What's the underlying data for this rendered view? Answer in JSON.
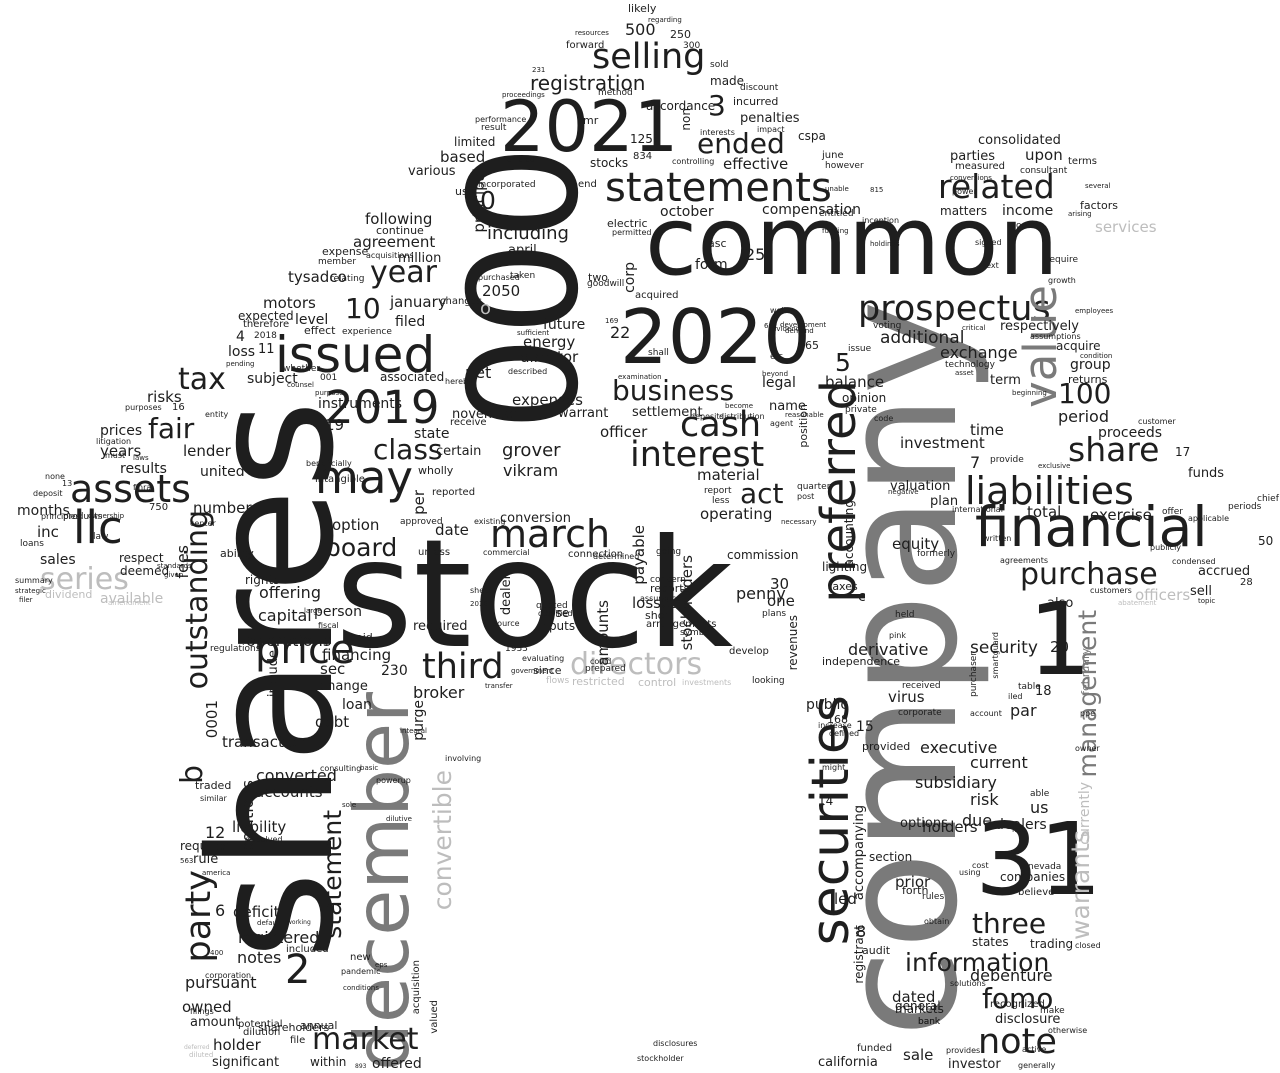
{
  "palette": {
    "dark": "#1e1e1e",
    "mid": "#7a7a7a",
    "light": "#bdbdbd"
  },
  "words": {
    "big": [
      "shares",
      "stock",
      "company",
      "000",
      "common",
      "2020",
      "2021",
      "31",
      "december",
      "financial",
      "securities",
      "preferred",
      "issued",
      "statements",
      "2019",
      "may",
      "prospectus",
      "liabilities",
      "assets",
      "march",
      "llc",
      "interest",
      "cash",
      "value",
      "liability",
      "related",
      "share",
      "purchase",
      "selling",
      "outstanding",
      "price",
      "market",
      "note",
      "third",
      "party",
      "fomo",
      "directors",
      "convertible",
      "management",
      "warrants",
      "series",
      "statement",
      "tax",
      "year",
      "fair",
      "business",
      "class",
      "board",
      "ended",
      "registration",
      "information",
      "three",
      "100",
      "act",
      "10",
      "1",
      "2",
      "3",
      "5",
      "0",
      "b",
      "o"
    ],
    "medium": [
      "including",
      "april",
      "energy",
      "director",
      "grover",
      "vikram",
      "penny",
      "net",
      "expenses",
      "warrant",
      "officer",
      "payable",
      "exchange",
      "additional",
      "respectively",
      "balance",
      "accounting",
      "derivative",
      "security",
      "authorized",
      "par",
      "executive",
      "current",
      "subsidiary",
      "risk",
      "holders",
      "prior",
      "dated",
      "disclosure",
      "debenture",
      "public",
      "virus",
      "investment",
      "period",
      "proceeds",
      "funds",
      "sell",
      "accrued",
      "exercise",
      "total",
      "equity",
      "valuation",
      "plan",
      "time",
      "term",
      "income",
      "consolidated",
      "parties",
      "upon",
      "compensation",
      "october",
      "corp",
      "form",
      "agreement",
      "following",
      "million",
      "tysadco",
      "motors",
      "level",
      "filed",
      "january",
      "loss",
      "subject",
      "associated",
      "risks",
      "years",
      "lender",
      "results",
      "months",
      "inc",
      "sales",
      "number",
      "offering",
      "capital",
      "operations",
      "include",
      "financing",
      "sec",
      "change",
      "loan",
      "debt",
      "transaction",
      "converted",
      "accounts",
      "requires",
      "rule",
      "pursuant",
      "registered",
      "notes",
      "deficit",
      "owned",
      "amount",
      "holder",
      "significant",
      "shareholders",
      "within",
      "offered",
      "purge",
      "required",
      "person",
      "broker",
      "conversion",
      "option",
      "date",
      "per",
      "operating",
      "material",
      "stockholders",
      "amounts",
      "losses",
      "raise",
      "inputs",
      "dealer",
      "settlement",
      "state",
      "november",
      "instruments",
      "certain",
      "principal",
      "various",
      "based",
      "effective",
      "cspa",
      "penalties",
      "incurred",
      "made",
      "accordance",
      "non",
      "limited",
      "future",
      "500",
      "250",
      "300",
      "likely",
      "sold",
      "forward",
      "method",
      "mr",
      "california",
      "sale",
      "investor",
      "revenues",
      "legal",
      "name",
      "commission",
      "one",
      "lighting",
      "taxes",
      "independence",
      "revenue",
      "led",
      "section",
      "options",
      "due",
      "us",
      "dealers",
      "companies",
      "trading",
      "states",
      "general",
      "markets",
      "bank",
      "provided",
      "accompanying",
      "registrant",
      "audit",
      "funded",
      "forth",
      "rules",
      "also",
      "smartguard",
      "group",
      "acquire",
      "returns",
      "terms",
      "factors",
      "consultant",
      "measured",
      "matters",
      "signed",
      "next",
      "require",
      "growth",
      "oem",
      "february",
      "currently",
      "services",
      "officers",
      "available",
      "dividend",
      "prices",
      "united",
      "respect",
      "deemed",
      "ability",
      "rights",
      "positions",
      "fees",
      "0001",
      "4",
      "6",
      "7",
      "8",
      "11",
      "12",
      "14",
      "15",
      "16",
      "17",
      "18",
      "19",
      "20",
      "22",
      "25",
      "28",
      "30",
      "125",
      "168",
      "230",
      "750",
      "2050",
      "50",
      "65",
      "834",
      "opinion",
      "indemnification",
      "sheets",
      "voting",
      "private",
      "june",
      "however",
      "entitled",
      "continue",
      "expense",
      "member",
      "relating",
      "expected",
      "therefore",
      "effect",
      "experience",
      "pending",
      "counsel",
      "purpose",
      "hereby",
      "receive",
      "entity",
      "intangible",
      "reported",
      "approved",
      "unless",
      "existing",
      "commercial",
      "connection",
      "determined",
      "going",
      "concern",
      "issuer",
      "short",
      "arrangements",
      "symbol",
      "develop",
      "plans",
      "gain",
      "looking",
      "restricted",
      "control",
      "investments",
      "flows",
      "since",
      "transfer",
      "government",
      "1933",
      "evaluating",
      "quoted",
      "qualified",
      "source",
      "issuance",
      "sheet",
      "reports",
      "assurance",
      "covid",
      "prepared",
      "reference",
      "stockholder",
      "disclosures",
      "deposits",
      "distribution",
      "agent",
      "position",
      "well",
      "eic",
      "beyond",
      "acquired",
      "goodwill",
      "two",
      "taken",
      "purchased",
      "changes",
      "acquisitions",
      "asc",
      "substantial",
      "consideration",
      "permitted",
      "electric",
      "discretion",
      "first",
      "end",
      "stocks",
      "use",
      "incorporated",
      "entered",
      "controlling",
      "interests",
      "impact",
      "federal",
      "result",
      "performance",
      "lenders",
      "proceedings",
      "discount",
      "regarding",
      "resources",
      "231",
      "27",
      "01",
      "c",
      "ii",
      "issue",
      "might",
      "defined",
      "increase",
      "demand",
      "development",
      "dividends",
      "become",
      "quarter",
      "post",
      "less",
      "report",
      "necessary",
      "formerly",
      "received",
      "corporate",
      "held",
      "pink",
      "negative",
      "code",
      "international",
      "written",
      "provide",
      "exclusive",
      "fund",
      "table",
      "iled",
      "ppe",
      "owner",
      "able",
      "free",
      "nevada",
      "cost",
      "using",
      "believe",
      "recognized",
      "closed",
      "make",
      "otherwise",
      "active",
      "generally",
      "provides",
      "solutions",
      "obtain",
      "purchaser",
      "account",
      "pv",
      "business",
      "uncertain",
      "chief",
      "periods",
      "customers",
      "topic",
      "condensed",
      "publicly",
      "applicable",
      "offer",
      "customer",
      "provisions",
      "agreements",
      "condition",
      "employees",
      "beginning",
      "assumptions",
      "several",
      "arising",
      "conversions",
      "power",
      "technology",
      "asset",
      "critical",
      "sufficient",
      "examination",
      "shall",
      "described",
      "september",
      "169",
      "662",
      "reasonable",
      "beneficial",
      "inception",
      "funding",
      "unable",
      "holdings",
      "815",
      "cspa",
      "deferred",
      "diluted",
      "advisory",
      "activities",
      "reporting",
      "transactions",
      "valued",
      "acquisition",
      "involving",
      "powerup",
      "consulting",
      "basic",
      "dilutive",
      "integral",
      "included",
      "pandemic",
      "new",
      "conditions",
      "eps",
      "potential",
      "annual",
      "dilution",
      "file",
      "893",
      "filings",
      "corporation",
      "america",
      "563",
      "400",
      "similar",
      "sole",
      "disinfection",
      "working",
      "default",
      "revenue",
      "dissolved",
      "traded",
      "summary",
      "loans",
      "deposit",
      "none",
      "13",
      "whether",
      "litigation",
      "purposes",
      "strategic",
      "products",
      "filer",
      "standards",
      "given",
      "principles",
      "ownership",
      "must",
      "center",
      "large",
      "paid",
      "fiscal",
      "regulations",
      "law",
      "wholly",
      "resale",
      "finra",
      "beneficially",
      "laws",
      "001",
      "2016",
      "2018",
      "capital",
      "abatement",
      "amendment",
      "guaranteed"
    ],
    "small_list_note": "Small words are listed in the order drawn; many appear rotated."
  }
}
